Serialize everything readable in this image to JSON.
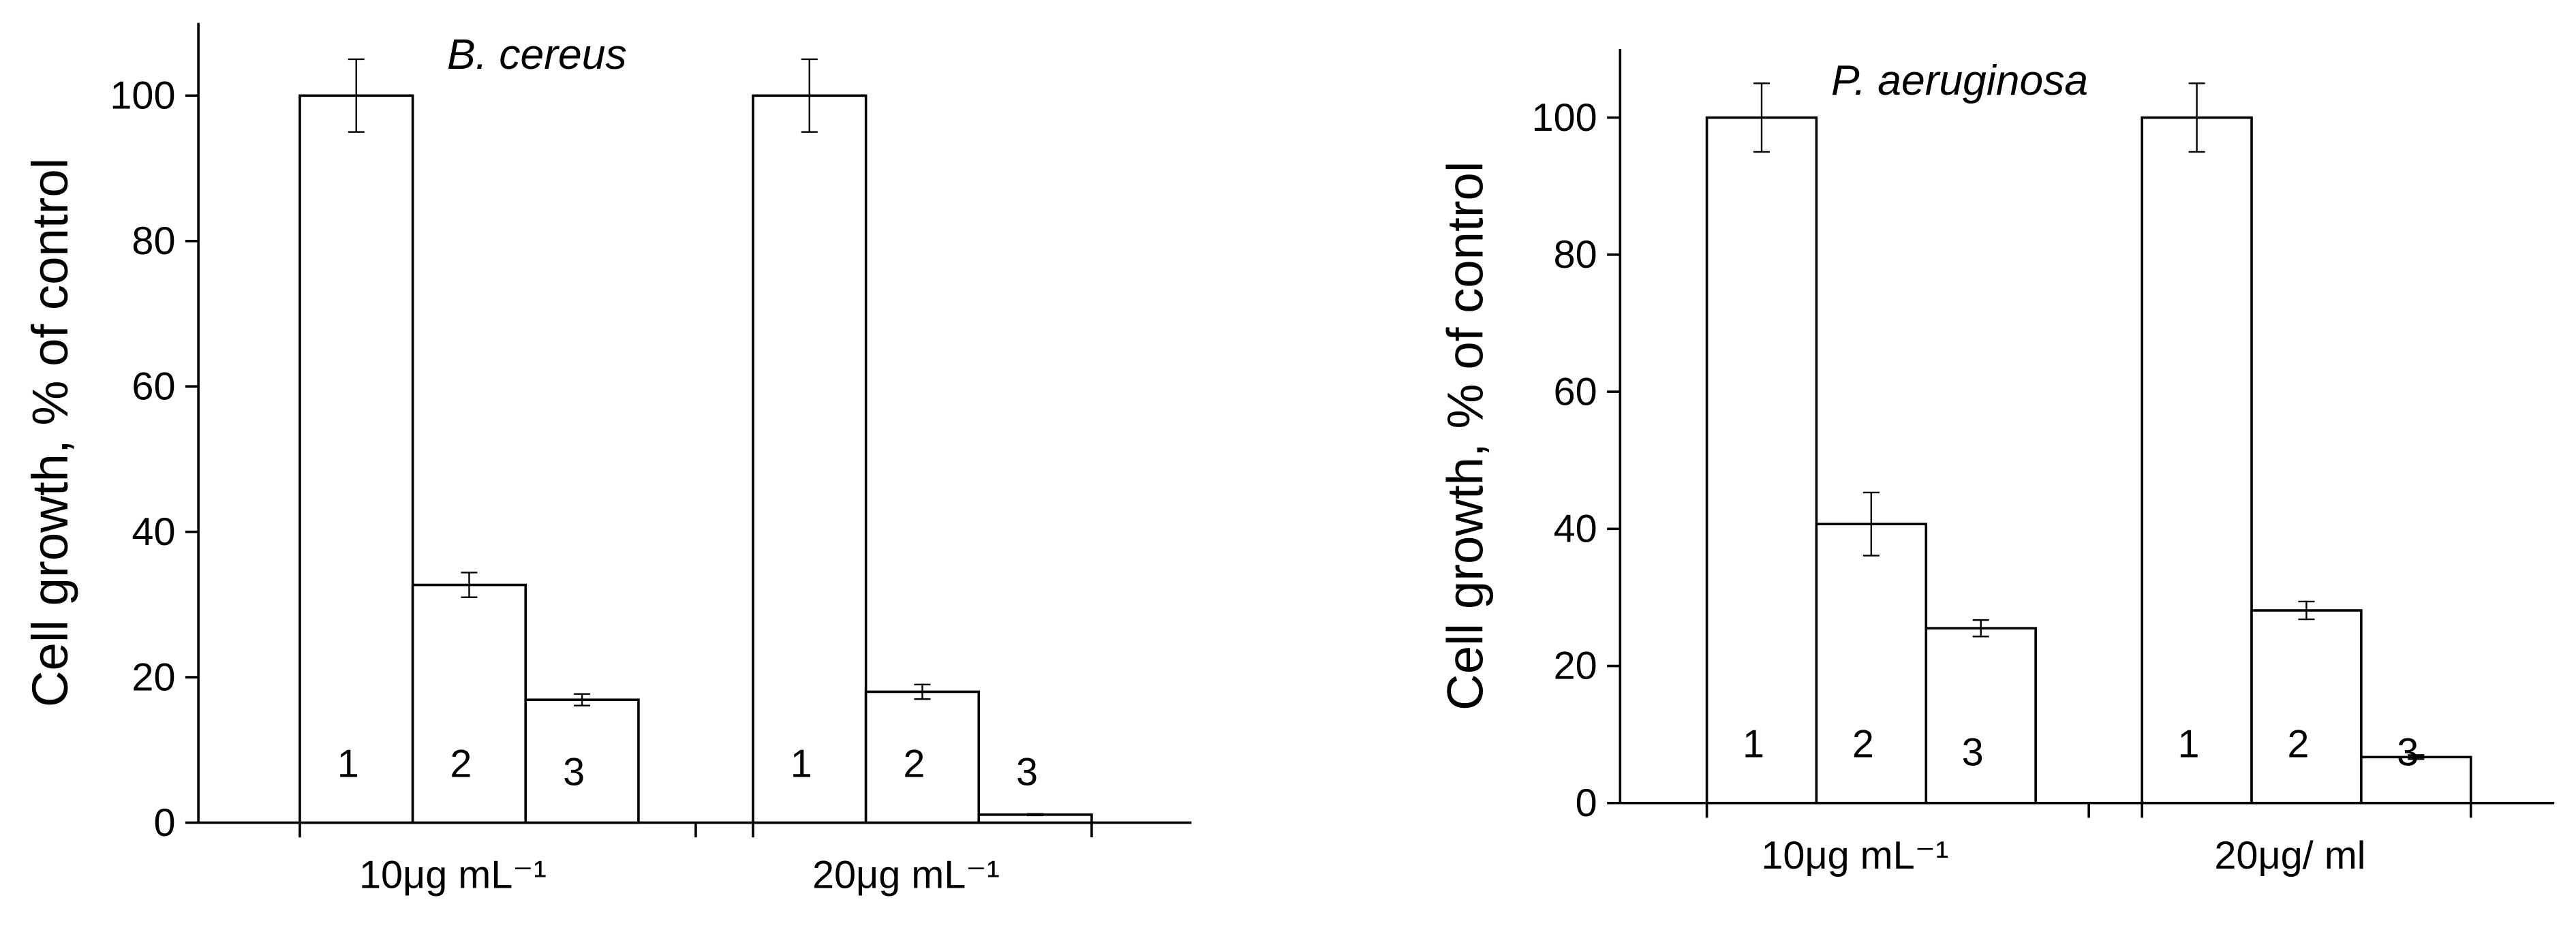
{
  "chart_data": [
    {
      "type": "bar",
      "title": "B. cereus",
      "y_label": "Cell growth, % of control",
      "categories": [
        "10μg mL⁻¹",
        "20μg mL⁻¹"
      ],
      "series": [
        {
          "name": "1",
          "color": "#ffffff",
          "values": [
            100,
            100
          ],
          "errors": [
            5,
            5
          ]
        },
        {
          "name": "2",
          "color": "#ffffff",
          "values": [
            32.7,
            18
          ],
          "errors": [
            1.7,
            1
          ]
        },
        {
          "name": "3",
          "color": "#ffffff",
          "values": [
            16.9,
            1.1
          ],
          "errors": [
            0.8,
            0.1
          ]
        }
      ],
      "ylim": [
        0,
        110
      ],
      "yticks": [
        0,
        20,
        40,
        60,
        80,
        100
      ]
    },
    {
      "type": "bar",
      "title": "P. aeruginosa",
      "y_label": "Cell growth, % of control",
      "categories": [
        "10μg mL⁻¹",
        "20μg/ ml"
      ],
      "series": [
        {
          "name": "1",
          "color": "#ffffff",
          "values": [
            100,
            100
          ],
          "errors": [
            5,
            5
          ]
        },
        {
          "name": "2",
          "color": "#ffffff",
          "values": [
            40.7,
            28.1
          ],
          "errors": [
            4.6,
            1.3
          ]
        },
        {
          "name": "3",
          "color": "#ffffff",
          "values": [
            25.5,
            6.7
          ],
          "errors": [
            1.2,
            0.3
          ]
        }
      ],
      "ylim": [
        0,
        110
      ],
      "yticks": [
        0,
        20,
        40,
        60,
        80,
        100
      ]
    }
  ]
}
